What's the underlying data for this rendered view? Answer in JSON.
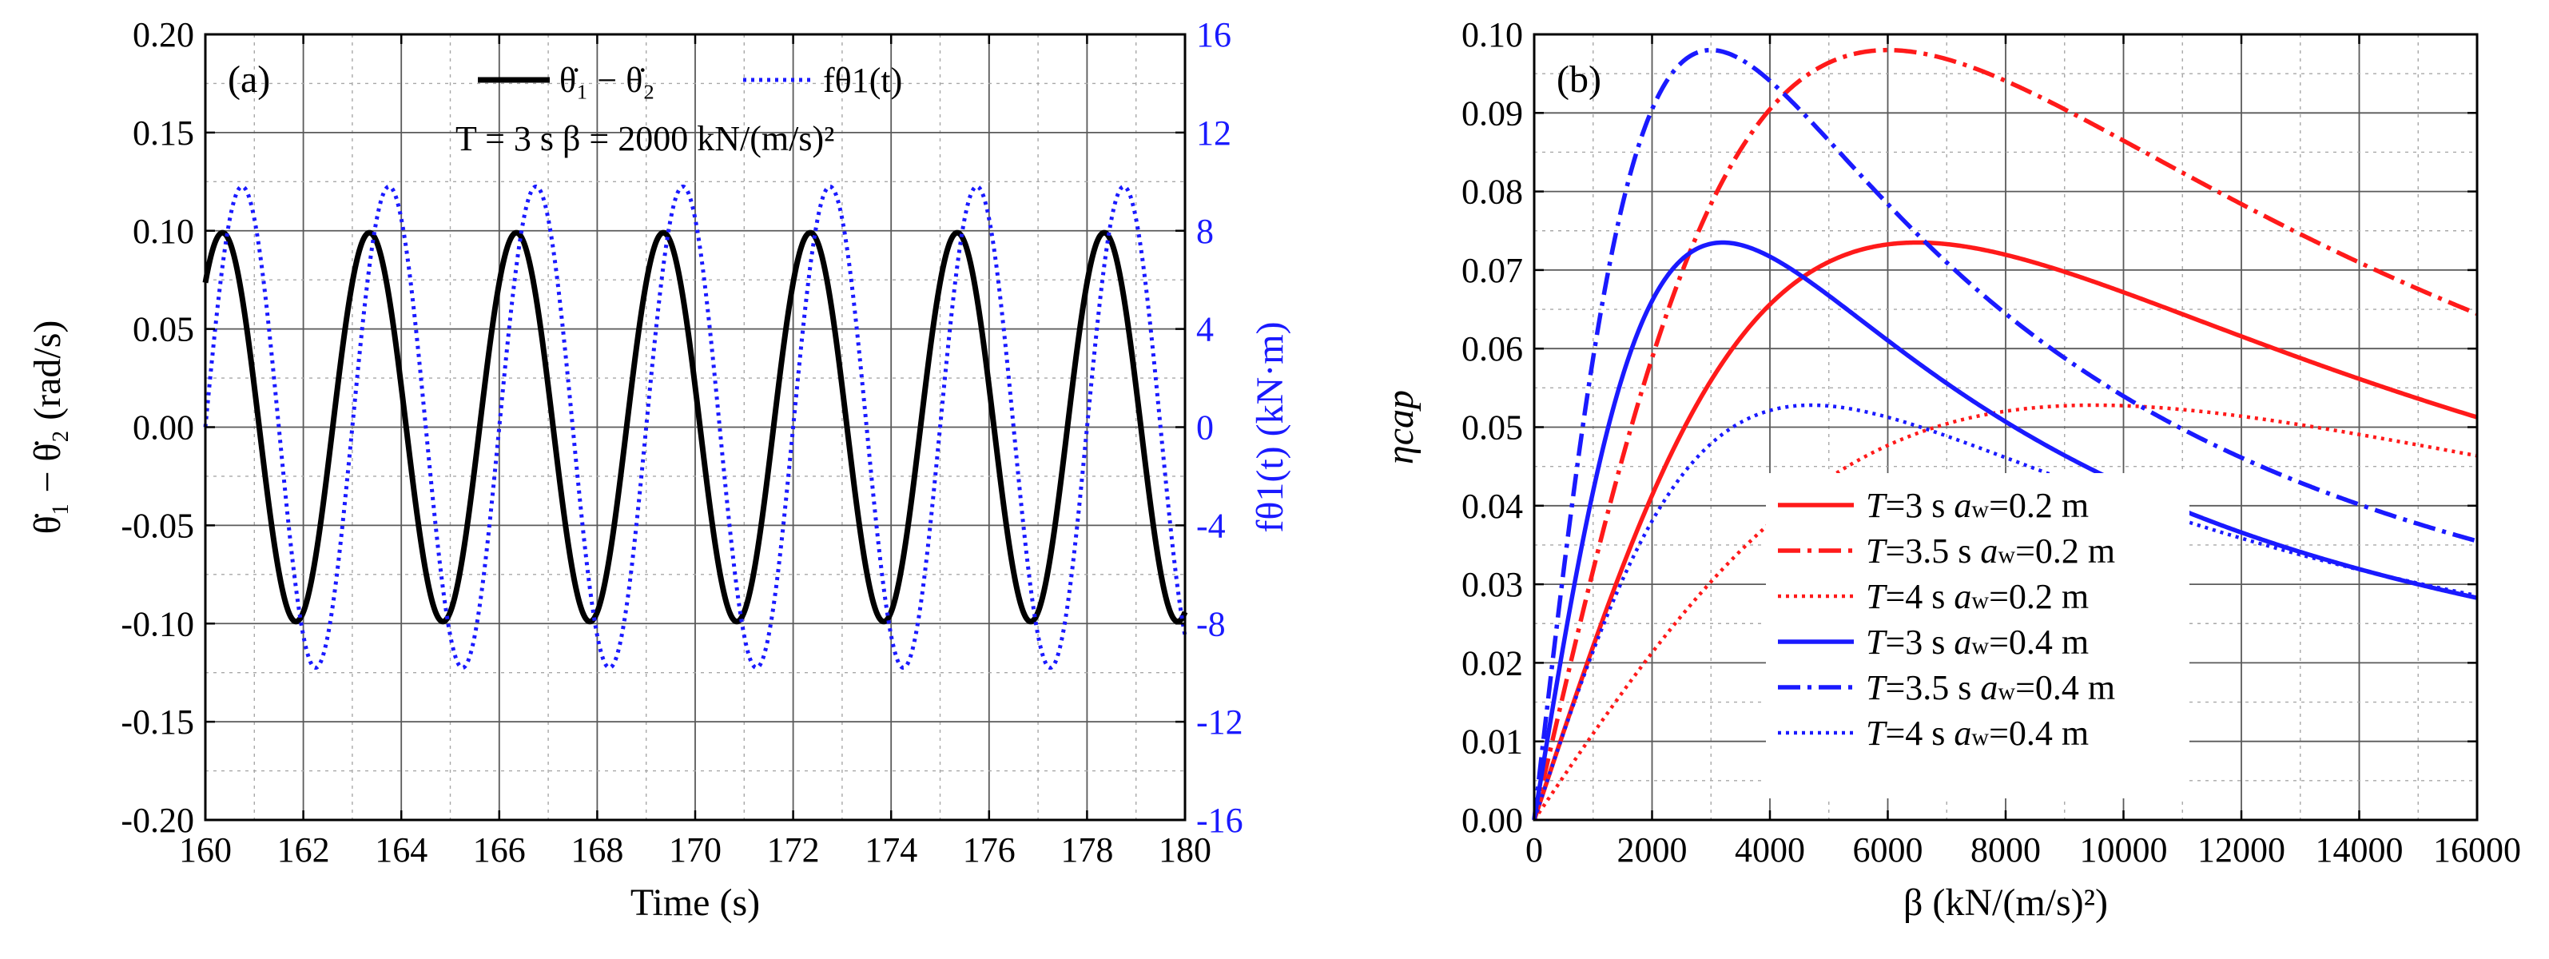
{
  "chart_data": [
    {
      "type": "line",
      "panel_label": "(a)",
      "xlabel": "Time (s)",
      "ylabel_left": "θ̇₁ − θ̇₂ (rad/s)",
      "ylabel_right": "fθ1(t) (kN·m)",
      "annotation": "T = 3 s β = 2000 kN/(m/s)²",
      "xlim": [
        160,
        180
      ],
      "ylim_left": [
        -0.2,
        0.2
      ],
      "ylim_right": [
        -16,
        16
      ],
      "x_ticks": [
        "160",
        "162",
        "164",
        "166",
        "168",
        "170",
        "172",
        "174",
        "176",
        "178",
        "180"
      ],
      "y_ticks_left": [
        "-0.20",
        "-0.15",
        "-0.10",
        "-0.05",
        "0.00",
        "0.05",
        "0.10",
        "0.15",
        "0.20"
      ],
      "y_ticks_right": [
        "-16",
        "-12",
        "-8",
        "-4",
        "0",
        "4",
        "8",
        "12",
        "16"
      ],
      "series": [
        {
          "name": "θ̇₁ − θ̇₂",
          "axis": "left",
          "style": "solid",
          "color": "#000000",
          "amplitude": 0.099,
          "period_s": 3.0,
          "phase_zero_cross_s": 161.1,
          "sign": -1
        },
        {
          "name": "fθ1(t)",
          "axis": "right",
          "style": "dotted",
          "color": "#1a1aff",
          "amplitude": 9.8,
          "period_s": 3.0,
          "phase_zero_cross_s": 160.0,
          "sign": 1
        }
      ]
    },
    {
      "type": "line",
      "panel_label": "(b)",
      "xlabel": "β (kN/(m/s)²)",
      "ylabel": "ηcap",
      "xlim": [
        0,
        16000
      ],
      "ylim": [
        0,
        0.1
      ],
      "x_ticks": [
        "0",
        "2000",
        "4000",
        "6000",
        "8000",
        "10000",
        "12000",
        "14000",
        "16000"
      ],
      "y_ticks": [
        "0.00",
        "0.01",
        "0.02",
        "0.03",
        "0.04",
        "0.05",
        "0.06",
        "0.07",
        "0.08",
        "0.09",
        "0.10"
      ],
      "series": [
        {
          "name": "T=3 s aw=0.2 m",
          "T": "T",
          "label_a": "=3 s ",
          "label_b": "=0.2 m",
          "color": "#ff1a1a",
          "style": "solid",
          "peak_x": 6500,
          "peak_y": 0.0735
        },
        {
          "name": "T=3.5 s aw=0.2 m",
          "T": "T",
          "label_a": "=3.5 s ",
          "label_b": "=0.2 m",
          "color": "#ff1a1a",
          "style": "dashdot",
          "peak_x": 6000,
          "peak_y": 0.098
        },
        {
          "name": "T=4 s aw=0.2 m",
          "T": "T",
          "label_a": "=4 s ",
          "label_b": "=0.2 m",
          "color": "#ff1a1a",
          "style": "dotted",
          "peak_x": 9500,
          "peak_y": 0.0528
        },
        {
          "name": "T=3 s aw=0.4 m",
          "T": "T",
          "label_a": "=3 s ",
          "label_b": "=0.4 m",
          "color": "#1a1aff",
          "style": "solid",
          "peak_x": 3200,
          "peak_y": 0.0735
        },
        {
          "name": "T=3.5 s aw=0.4 m",
          "T": "T",
          "label_a": "=3.5 s ",
          "label_b": "=0.4 m",
          "color": "#1a1aff",
          "style": "dashdot",
          "peak_x": 3000,
          "peak_y": 0.098
        },
        {
          "name": "T=4 s aw=0.4 m",
          "T": "T",
          "label_a": "=4 s ",
          "label_b": "=0.4 m",
          "color": "#1a1aff",
          "style": "dotted",
          "peak_x": 4700,
          "peak_y": 0.0528
        }
      ]
    }
  ]
}
